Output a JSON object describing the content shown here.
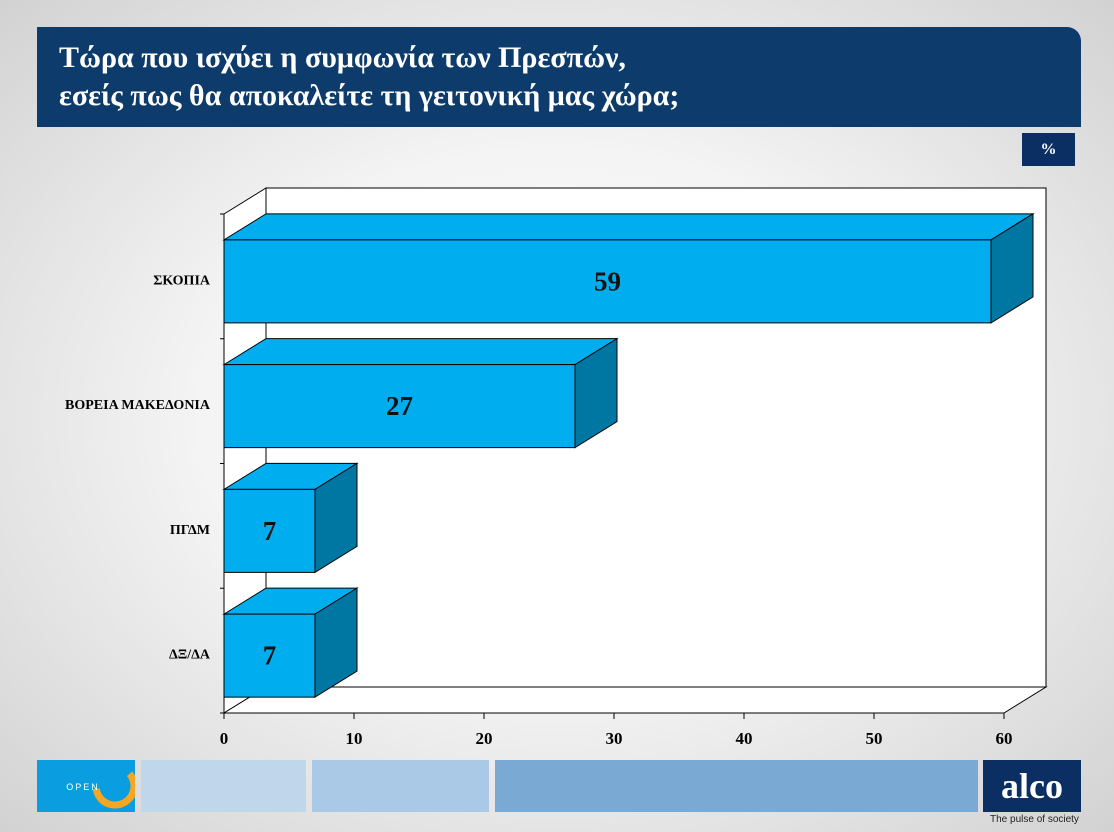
{
  "header": {
    "title_line1": "Τώρα που ισχύει η συμφωνία των Πρεσπών,",
    "title_line2": "εσείς πως θα αποκαλείτε τη γειτονική μας χώρα;",
    "unit_badge": "%"
  },
  "chart_data": {
    "type": "bar",
    "orientation": "horizontal",
    "categories": [
      "ΣΚΟΠΙΑ",
      "ΒΟΡΕΙΑ ΜΑΚΕΔΟΝΙΑ",
      "ΠΓΔΜ",
      "ΔΞ/ΔΑ"
    ],
    "values": [
      59,
      27,
      7,
      7
    ],
    "data_labels": [
      "59",
      "27",
      "7",
      "7"
    ],
    "xlim": [
      0,
      60
    ],
    "x_ticks": [
      0,
      10,
      20,
      30,
      40,
      50,
      60
    ],
    "x_tick_labels": [
      "0",
      "10",
      "20",
      "30",
      "40",
      "50",
      "60"
    ],
    "bar_color": "#00aeef",
    "bar_side_color": "#0076a3",
    "grid": false
  },
  "footer": {
    "open_logo_text": "OPEN",
    "alco_logo_text": "alco",
    "alco_tagline": "The pulse of society",
    "colors": {
      "open_bg": "#0a9ee0",
      "strip_light": "#c0d6ea",
      "strip_mid": "#a9c9e6",
      "strip_dark": "#7aaad4",
      "alco_bg": "#0b2f63"
    }
  }
}
